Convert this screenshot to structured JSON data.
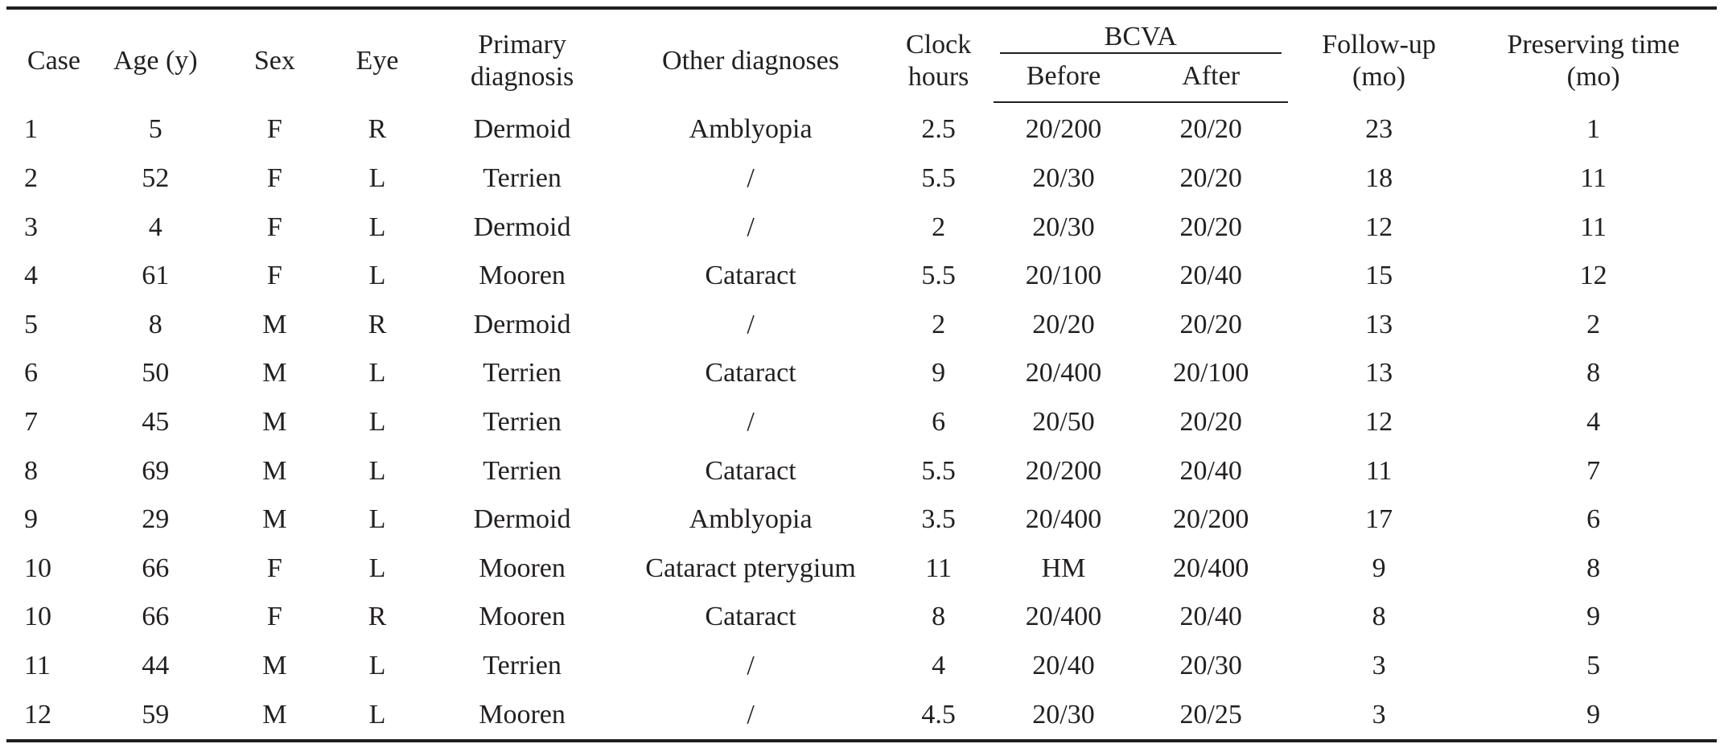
{
  "headers": {
    "case": "Case",
    "age": "Age (y)",
    "sex": "Sex",
    "eye": "Eye",
    "primary_line1": "Primary",
    "primary_line2": "diagnosis",
    "other": "Other diagnoses",
    "clock_line1": "Clock",
    "clock_line2": "hours",
    "bcva": "BCVA",
    "before": "Before",
    "after": "After",
    "follow_line1": "Follow-up",
    "follow_line2": "(mo)",
    "preserve_line1": "Preserving time",
    "preserve_line2": "(mo)"
  },
  "rows": [
    [
      "1",
      "5",
      "F",
      "R",
      "Dermoid",
      "Amblyopia",
      "2.5",
      "20/200",
      "20/20",
      "23",
      "1"
    ],
    [
      "2",
      "52",
      "F",
      "L",
      "Terrien",
      "/",
      "5.5",
      "20/30",
      "20/20",
      "18",
      "11"
    ],
    [
      "3",
      "4",
      "F",
      "L",
      "Dermoid",
      "/",
      "2",
      "20/30",
      "20/20",
      "12",
      "11"
    ],
    [
      "4",
      "61",
      "F",
      "L",
      "Mooren",
      "Cataract",
      "5.5",
      "20/100",
      "20/40",
      "15",
      "12"
    ],
    [
      "5",
      "8",
      "M",
      "R",
      "Dermoid",
      "/",
      "2",
      "20/20",
      "20/20",
      "13",
      "2"
    ],
    [
      "6",
      "50",
      "M",
      "L",
      "Terrien",
      "Cataract",
      "9",
      "20/400",
      "20/100",
      "13",
      "8"
    ],
    [
      "7",
      "45",
      "M",
      "L",
      "Terrien",
      "/",
      "6",
      "20/50",
      "20/20",
      "12",
      "4"
    ],
    [
      "8",
      "69",
      "M",
      "L",
      "Terrien",
      "Cataract",
      "5.5",
      "20/200",
      "20/40",
      "11",
      "7"
    ],
    [
      "9",
      "29",
      "M",
      "L",
      "Dermoid",
      "Amblyopia",
      "3.5",
      "20/400",
      "20/200",
      "17",
      "6"
    ],
    [
      "10",
      "66",
      "F",
      "L",
      "Mooren",
      "Cataract pterygium",
      "11",
      "HM",
      "20/400",
      "9",
      "8"
    ],
    [
      "10",
      "66",
      "F",
      "R",
      "Mooren",
      "Cataract",
      "8",
      "20/400",
      "20/40",
      "8",
      "9"
    ],
    [
      "11",
      "44",
      "M",
      "L",
      "Terrien",
      "/",
      "4",
      "20/40",
      "20/30",
      "3",
      "5"
    ],
    [
      "12",
      "59",
      "M",
      "L",
      "Mooren",
      "/",
      "4.5",
      "20/30",
      "20/25",
      "3",
      "9"
    ]
  ]
}
